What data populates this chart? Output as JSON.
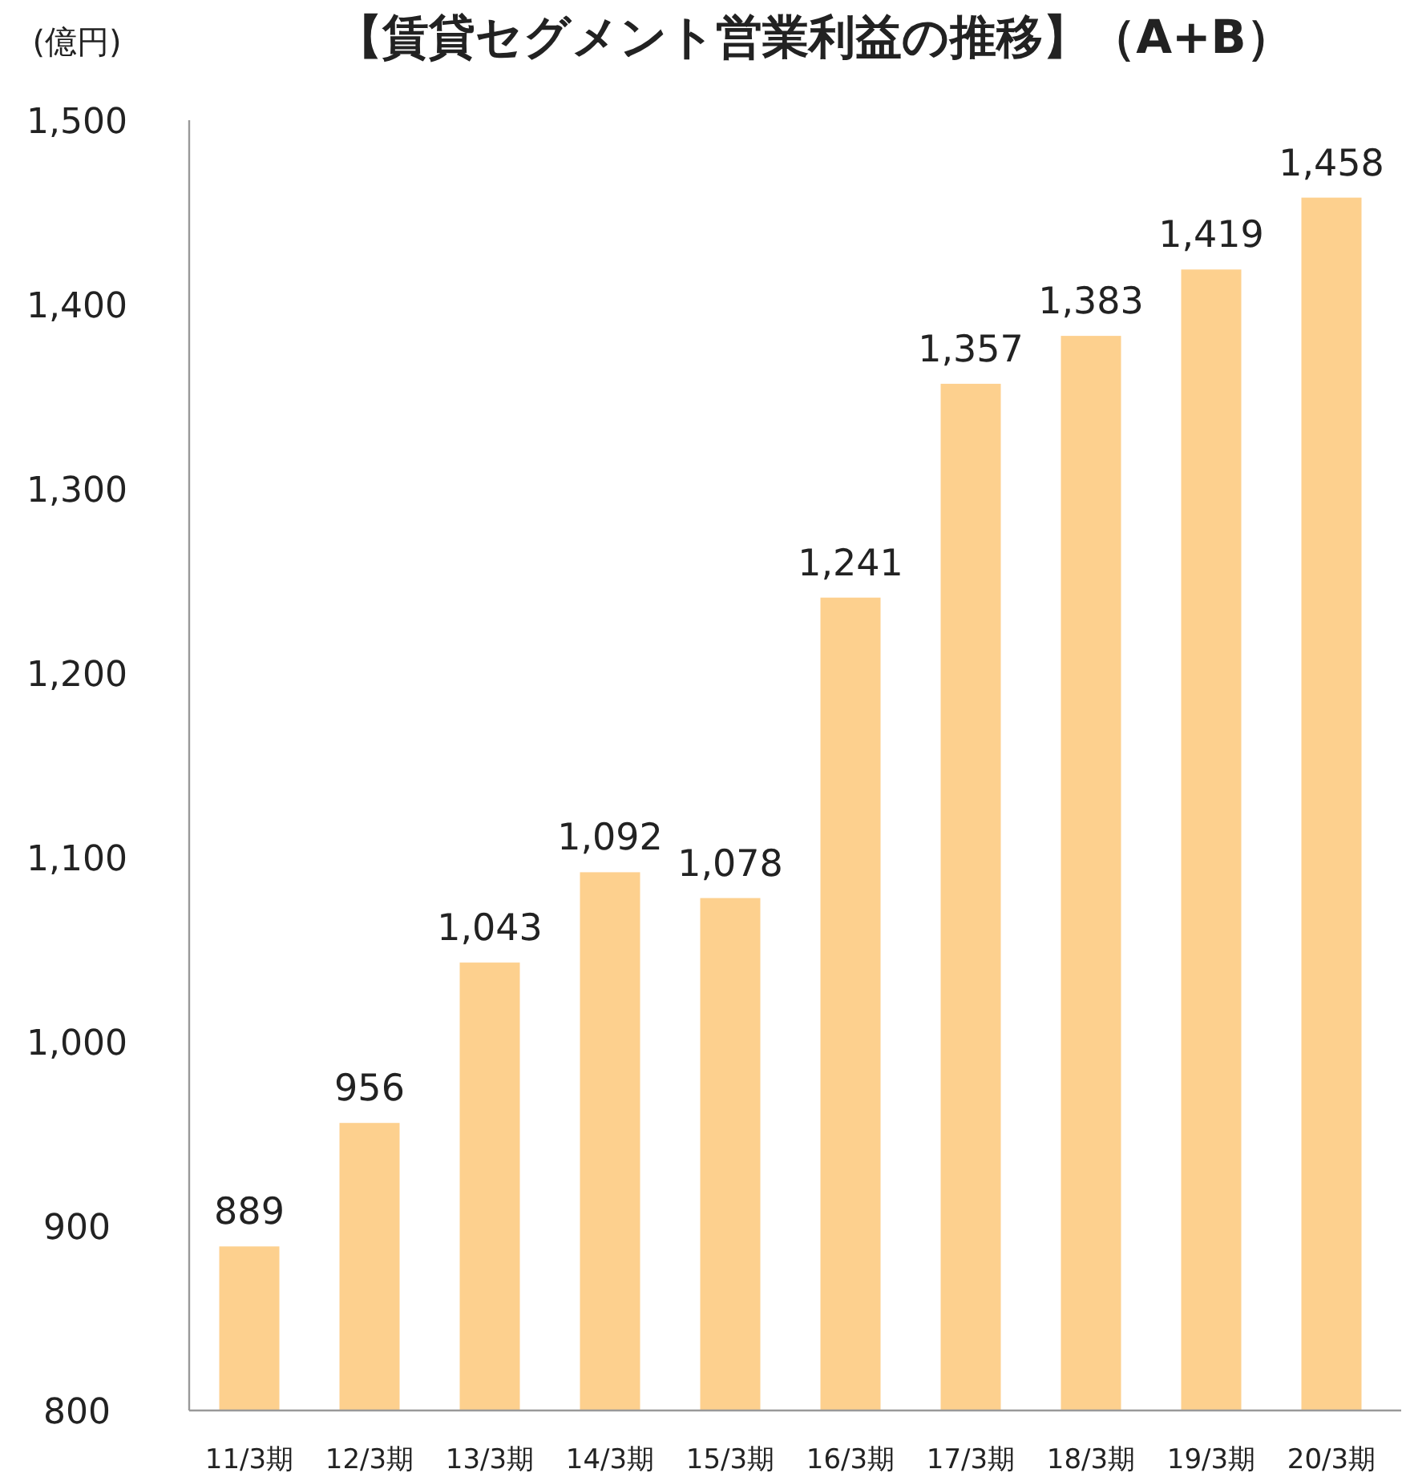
{
  "chart_data": {
    "type": "bar",
    "title": "【賃貸セグメント営業利益の推移】（A+B）",
    "ylabel": "(億円)",
    "categories": [
      "11/3期",
      "12/3期",
      "13/3期",
      "14/3期",
      "15/3期",
      "16/3期",
      "17/3期",
      "18/3期",
      "19/3期",
      "20/3期"
    ],
    "values": [
      889,
      956,
      1043,
      1092,
      1078,
      1241,
      1357,
      1383,
      1419,
      1458
    ],
    "value_labels": [
      "889",
      "956",
      "1,043",
      "1,092",
      "1,078",
      "1,241",
      "1,357",
      "1,383",
      "1,419",
      "1,458"
    ],
    "color": "#fdd08e",
    "ylim": [
      800,
      1500
    ],
    "yticks": [
      800,
      900,
      {
        "value": 1000,
        "label": "1,000"
      },
      {
        "value": 1100,
        "label": "1,100"
      },
      {
        "value": 1200,
        "label": "1,200"
      },
      {
        "value": 1300,
        "label": "1,300"
      },
      {
        "value": 1400,
        "label": "1,400"
      },
      {
        "value": 1500,
        "label": "1,500"
      }
    ]
  }
}
